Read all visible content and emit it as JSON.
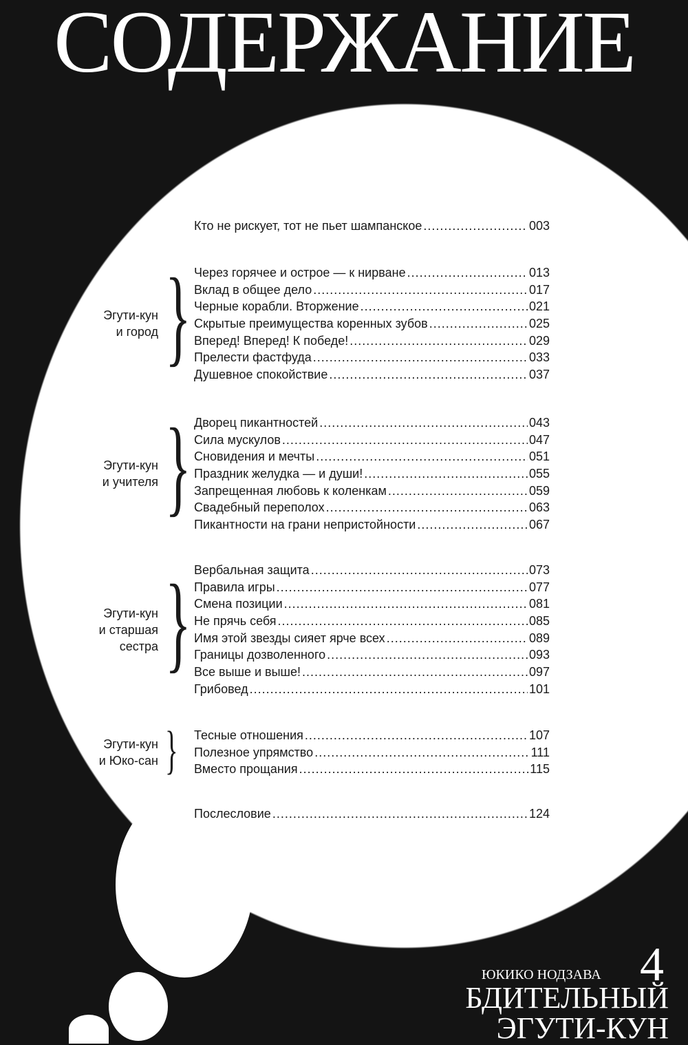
{
  "title": "СОДЕРЖАНИЕ",
  "prologue": {
    "title": "Кто не рискует, тот не пьет шампанское",
    "page": "003"
  },
  "groups": [
    {
      "label_lines": [
        "Эгути-кун",
        "и город"
      ],
      "entries": [
        {
          "title": "Через горячее и острое — к нирване",
          "page": "013"
        },
        {
          "title": "Вклад в общее дело",
          "page": "017"
        },
        {
          "title": "Черные корабли. Вторжение",
          "page": "021"
        },
        {
          "title": "Скрытые преимущества коренных зубов",
          "page": "025"
        },
        {
          "title": "Вперед! Вперед! К победе!",
          "page": "029"
        },
        {
          "title": "Прелести фастфуда",
          "page": "033"
        },
        {
          "title": "Душевное спокойствие",
          "page": "037"
        }
      ]
    },
    {
      "label_lines": [
        "Эгути-кун",
        "и учителя"
      ],
      "entries": [
        {
          "title": "Дворец пикантностей",
          "page": "043"
        },
        {
          "title": "Сила мускулов",
          "page": "047"
        },
        {
          "title": "Сновидения и мечты",
          "page": "051"
        },
        {
          "title": "Праздник желудка — и души!",
          "page": "055"
        },
        {
          "title": "Запрещенная любовь к коленкам",
          "page": "059"
        },
        {
          "title": "Свадебный переполох",
          "page": "063"
        },
        {
          "title": "Пикантности на грани непристойности",
          "page": "067"
        }
      ]
    },
    {
      "label_lines": [
        "Эгути-кун",
        "и старшая",
        "сестра"
      ],
      "entries": [
        {
          "title": "Вербальная защита",
          "page": "073"
        },
        {
          "title": "Правила игры",
          "page": "077"
        },
        {
          "title": "Смена позиции",
          "page": "081"
        },
        {
          "title": "Не прячь себя",
          "page": "085"
        },
        {
          "title": "Имя этой звезды сияет ярче всех",
          "page": "089"
        },
        {
          "title": "Границы дозволенного",
          "page": "093"
        },
        {
          "title": "Все выше и выше!",
          "page": "097"
        },
        {
          "title": "Грибовед",
          "page": "101"
        }
      ]
    },
    {
      "label_lines": [
        "Эгути-кун",
        "и Юко-сан"
      ],
      "entries": [
        {
          "title": "Тесные отношения",
          "page": "107"
        },
        {
          "title": "Полезное упрямство",
          "page": "111"
        },
        {
          "title": "Вместо прощания",
          "page": "115"
        }
      ]
    }
  ],
  "epilogue": {
    "title": "Послесловие",
    "page": "124"
  },
  "cover": {
    "author": "ЮКИКО НОДЗАВА",
    "volume": "4",
    "series_lines": [
      "БДИТЕЛЬНЫЙ",
      "ЭГУТИ-КУН"
    ]
  },
  "colors": {
    "background": "#141414",
    "bubble": "#ffffff",
    "text": "#1a1a1a"
  }
}
